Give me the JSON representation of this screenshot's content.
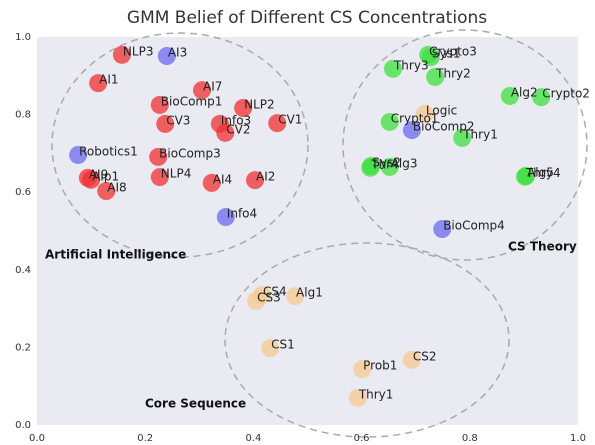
{
  "chart_data": {
    "type": "scatter",
    "title": "GMM Belief of Different CS Concentrations",
    "xlim": [
      0,
      1
    ],
    "ylim": [
      0,
      1
    ],
    "xticks": [
      {
        "value": 0,
        "label": "0.0"
      },
      {
        "value": 0.2,
        "label": "0.2"
      },
      {
        "value": 0.4,
        "label": "0.4"
      },
      {
        "value": 0.6,
        "label": "0.6"
      },
      {
        "value": 0.8,
        "label": "0.8"
      },
      {
        "value": 1,
        "label": "1.0"
      }
    ],
    "yticks": [
      {
        "value": 0,
        "label": "0.0"
      },
      {
        "value": 0.2,
        "label": "0.2"
      },
      {
        "value": 0.4,
        "label": "0.4"
      },
      {
        "value": 0.6,
        "label": "0.6"
      },
      {
        "value": 0.8,
        "label": "0.8"
      },
      {
        "value": 1,
        "label": "1.0"
      }
    ],
    "grid": false,
    "annotations": [
      "Artificial Intelligence",
      "CS Theory",
      "Core Sequence"
    ],
    "series": [
      {
        "color": "#f03030",
        "labels": [
          "NLP3",
          "AI1",
          "AI7",
          "BioComp1",
          "NLP2",
          "CV3",
          "Info3",
          "CV2",
          "CV1",
          "BioComp3",
          "NLP4",
          "AI4",
          "AI2",
          "AI9",
          "AIp1",
          "AI8"
        ],
        "x": [
          0.157,
          0.113,
          0.305,
          0.227,
          0.381,
          0.237,
          0.338,
          0.348,
          0.444,
          0.224,
          0.227,
          0.323,
          0.403,
          0.094,
          0.1,
          0.128
        ],
        "values": [
          0.954,
          0.881,
          0.863,
          0.825,
          0.817,
          0.776,
          0.776,
          0.753,
          0.778,
          0.691,
          0.639,
          0.624,
          0.631,
          0.637,
          0.632,
          0.603
        ]
      },
      {
        "color": "#6a6af0",
        "labels": [
          "AI3",
          "Robotics1",
          "Info4",
          "BioComp2",
          "BioComp4"
        ],
        "x": [
          0.24,
          0.076,
          0.349,
          0.693,
          0.749
        ],
        "values": [
          0.951,
          0.696,
          0.536,
          0.76,
          0.505
        ]
      },
      {
        "color": "#3ee03e",
        "labels": [
          "Crypto3",
          "Sys1",
          "Thry3",
          "Thry2",
          "Alg2",
          "Crypto2",
          "Crypto1",
          "Thry1",
          "Sys2",
          "Thr4",
          "Alg3",
          "Alg5",
          "Thry4"
        ],
        "x": [
          0.723,
          0.728,
          0.658,
          0.736,
          0.874,
          0.932,
          0.652,
          0.786,
          0.618,
          0.616,
          0.652,
          0.904,
          0.902
        ],
        "values": [
          0.954,
          0.948,
          0.918,
          0.897,
          0.848,
          0.845,
          0.781,
          0.74,
          0.668,
          0.663,
          0.665,
          0.642,
          0.64
        ]
      },
      {
        "color": "#f5c890",
        "labels": [
          "Logic",
          "CS4",
          "CS3",
          "Alg1",
          "CS1",
          "Prob1",
          "CS2",
          "Thry1"
        ],
        "x": [
          0.717,
          0.416,
          0.405,
          0.477,
          0.431,
          0.601,
          0.693,
          0.593
        ],
        "values": [
          0.802,
          0.335,
          0.32,
          0.332,
          0.198,
          0.144,
          0.168,
          0.07
        ]
      }
    ]
  }
}
